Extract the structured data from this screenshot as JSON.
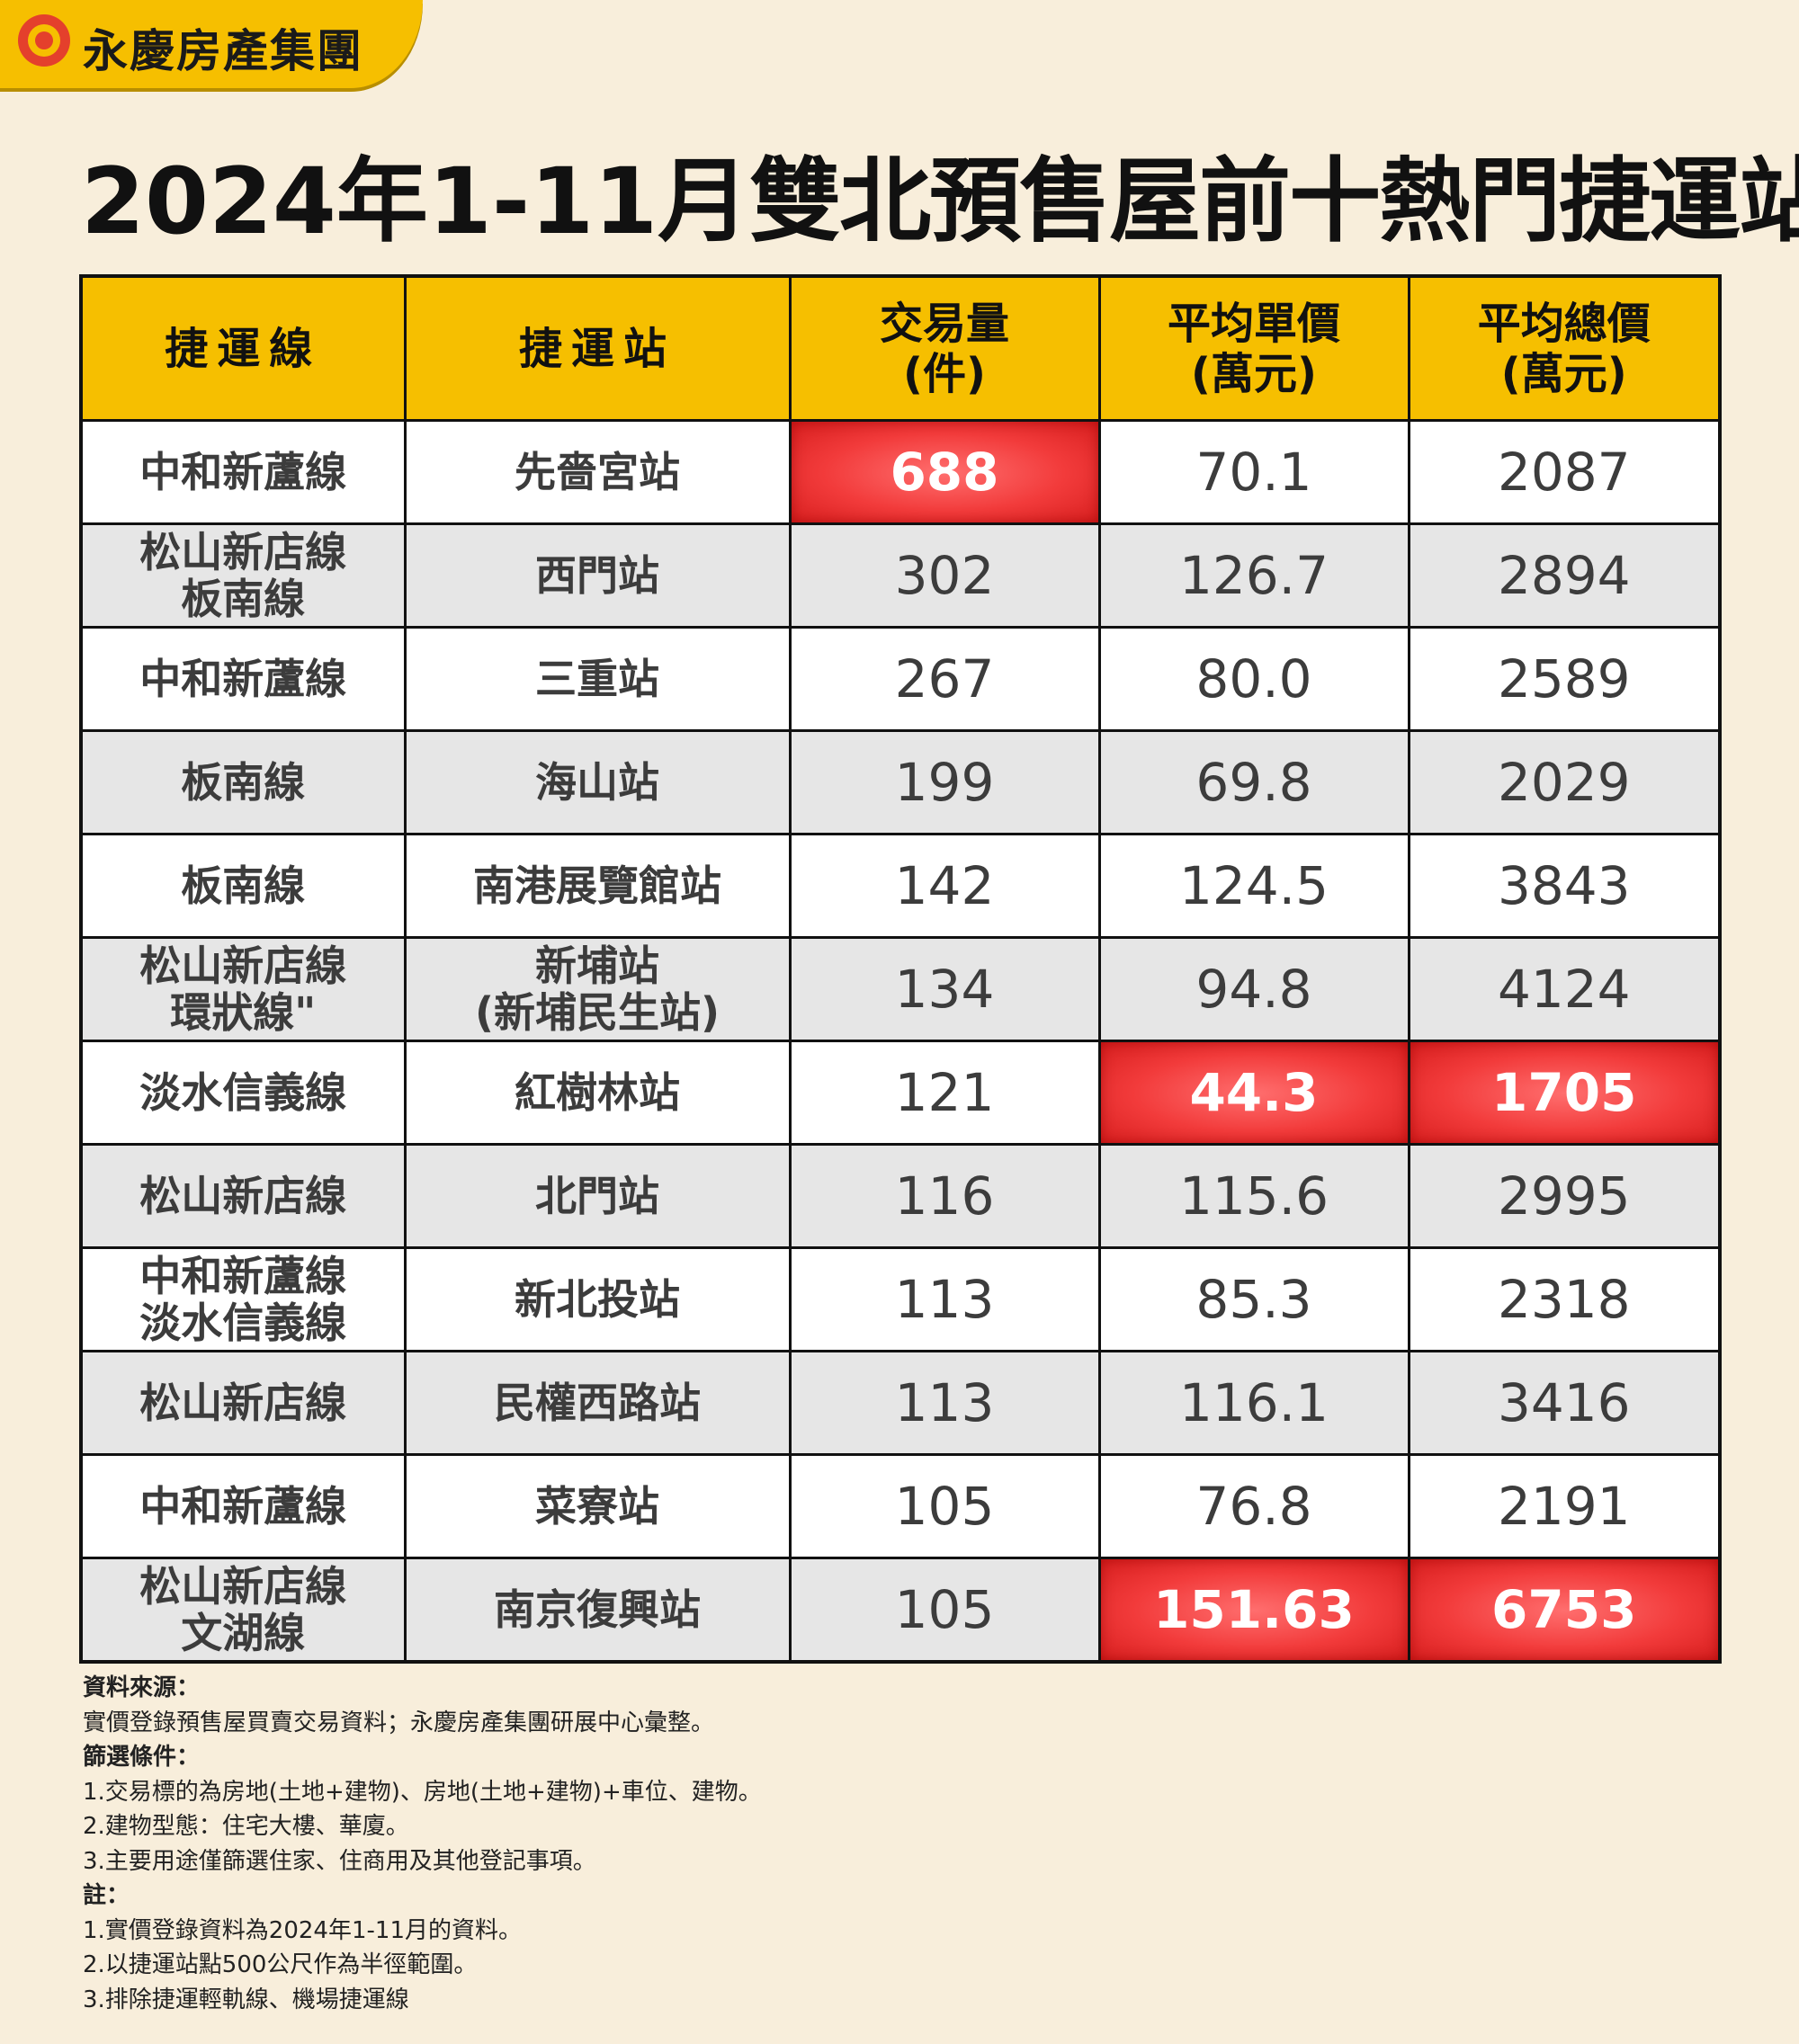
{
  "brand": {
    "name": "永慶房產集團"
  },
  "title": {
    "prefix": "2024年1-11月",
    "main": "雙北預售屋前十熱門捷運站"
  },
  "table": {
    "headers": {
      "line": "捷運線",
      "station": "捷運站",
      "volume": [
        "交易量",
        "(件)"
      ],
      "unit_price": [
        "平均單價",
        "(萬元)"
      ],
      "total_price": [
        "平均總價",
        "(萬元)"
      ]
    },
    "rows": [
      {
        "line": [
          "中和新蘆線"
        ],
        "station": [
          "先嗇宮站"
        ],
        "volume": "688",
        "unit_price": "70.1",
        "total_price": "2087"
      },
      {
        "line": [
          "松山新店線",
          "板南線"
        ],
        "station": [
          "西門站"
        ],
        "volume": "302",
        "unit_price": "126.7",
        "total_price": "2894"
      },
      {
        "line": [
          "中和新蘆線"
        ],
        "station": [
          "三重站"
        ],
        "volume": "267",
        "unit_price": "80.0",
        "total_price": "2589"
      },
      {
        "line": [
          "板南線"
        ],
        "station": [
          "海山站"
        ],
        "volume": "199",
        "unit_price": "69.8",
        "total_price": "2029"
      },
      {
        "line": [
          "板南線"
        ],
        "station": [
          "南港展覽館站"
        ],
        "volume": "142",
        "unit_price": "124.5",
        "total_price": "3843"
      },
      {
        "line": [
          "松山新店線",
          "環狀線\""
        ],
        "station": [
          "新埔站",
          "(新埔民生站)"
        ],
        "volume": "134",
        "unit_price": "94.8",
        "total_price": "4124"
      },
      {
        "line": [
          "淡水信義線"
        ],
        "station": [
          "紅樹林站"
        ],
        "volume": "121",
        "unit_price": "44.3",
        "total_price": "1705"
      },
      {
        "line": [
          "松山新店線"
        ],
        "station": [
          "北門站"
        ],
        "volume": "116",
        "unit_price": "115.6",
        "total_price": "2995"
      },
      {
        "line": [
          "中和新蘆線",
          "淡水信義線"
        ],
        "station": [
          "新北投站"
        ],
        "volume": "113",
        "unit_price": "85.3",
        "total_price": "2318"
      },
      {
        "line": [
          "松山新店線"
        ],
        "station": [
          "民權西路站"
        ],
        "volume": "113",
        "unit_price": "116.1",
        "total_price": "3416"
      },
      {
        "line": [
          "中和新蘆線"
        ],
        "station": [
          "菜寮站"
        ],
        "volume": "105",
        "unit_price": "76.8",
        "total_price": "2191"
      },
      {
        "line": [
          "松山新店線",
          "文湖線"
        ],
        "station": [
          "南京復興站"
        ],
        "volume": "105",
        "unit_price": "151.63",
        "total_price": "6753"
      }
    ],
    "highlights": [
      {
        "row": 0,
        "col": "volume"
      },
      {
        "row": 6,
        "col": "unit_price"
      },
      {
        "row": 6,
        "col": "total_price"
      },
      {
        "row": 11,
        "col": "unit_price"
      },
      {
        "row": 11,
        "col": "total_price"
      }
    ]
  },
  "notes": {
    "source_heading": "資料來源：",
    "source_text": "實價登錄預售屋買賣交易資料；永慶房產集團研展中心彙整。",
    "filter_heading": "篩選條件：",
    "filter_items": [
      "1.交易標的為房地(土地+建物)、房地(土地+建物)+車位、建物。",
      "2.建物型態：住宅大樓、華廈。",
      "3.主要用途僅篩選住家、住商用及其他登記事項。"
    ],
    "remark_heading": "註：",
    "remark_items": [
      "1.實價登錄資料為2024年1-11月的資料。",
      "2.以捷運站點500公尺作為半徑範圍。",
      "3.排除捷運輕軌線、機場捷運線"
    ]
  },
  "colors": {
    "background": "#f8eedb",
    "header": "#f6bf00",
    "highlight": "#f23b3b",
    "brand_icon": "#e4402c",
    "row_alt": "#e6e6e6"
  }
}
